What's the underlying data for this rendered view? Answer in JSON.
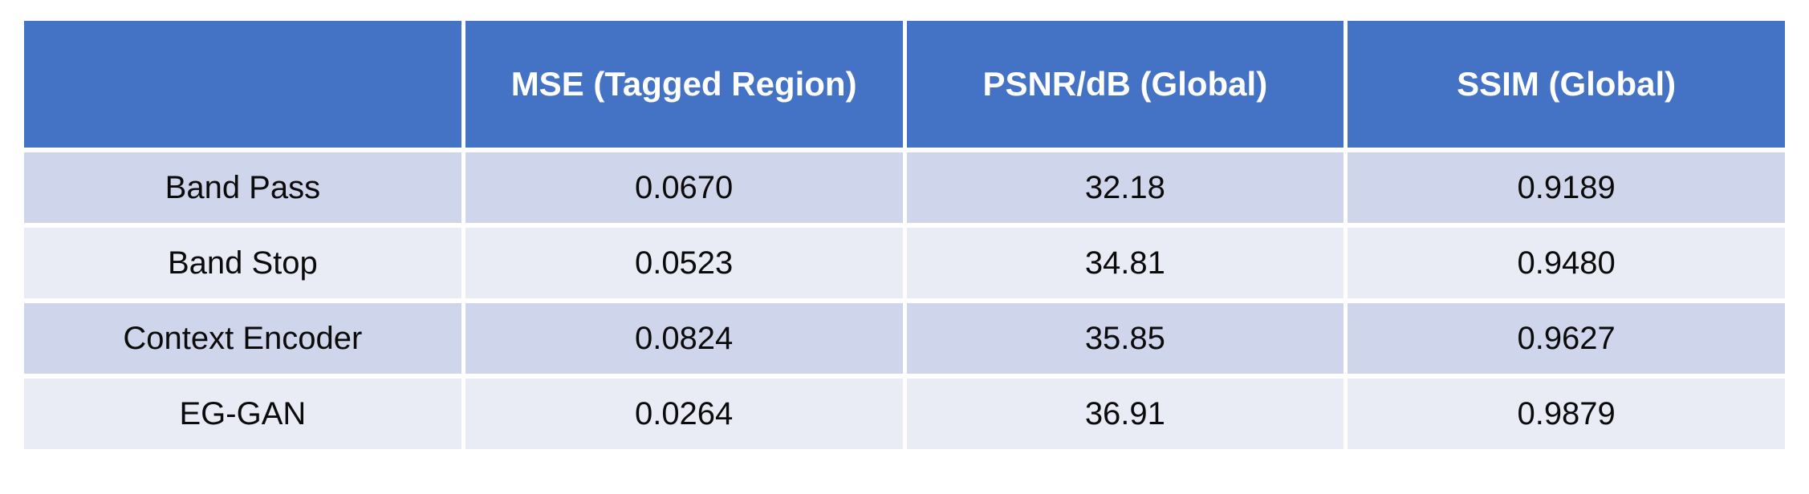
{
  "colors": {
    "header_bg": "#4472C4",
    "row_odd_bg": "#CFD5EA",
    "row_even_bg": "#E9EBF5",
    "header_text": "#FFFFFF",
    "body_text": "#0B0B0B"
  },
  "chart_data": {
    "type": "table",
    "title": "",
    "columns": [
      "",
      "MSE (Tagged Region)",
      "PSNR/dB (Global)",
      "SSIM (Global)"
    ],
    "rows": [
      {
        "label": "Band Pass",
        "values": [
          "0.0670",
          "32.18",
          "0.9189"
        ],
        "values_bold": false,
        "label_bold": false
      },
      {
        "label": "Band Stop",
        "values": [
          "0.0523",
          "34.81",
          "0.9480"
        ],
        "values_bold": false,
        "label_bold": false
      },
      {
        "label": "Context Encoder",
        "values": [
          "0.0824",
          "35.85",
          "0.9627"
        ],
        "values_bold": false,
        "label_bold": false
      },
      {
        "label": "EG-GAN",
        "values": [
          "0.0264",
          "36.91",
          "0.9879"
        ],
        "values_bold": true,
        "label_bold": false
      }
    ]
  }
}
